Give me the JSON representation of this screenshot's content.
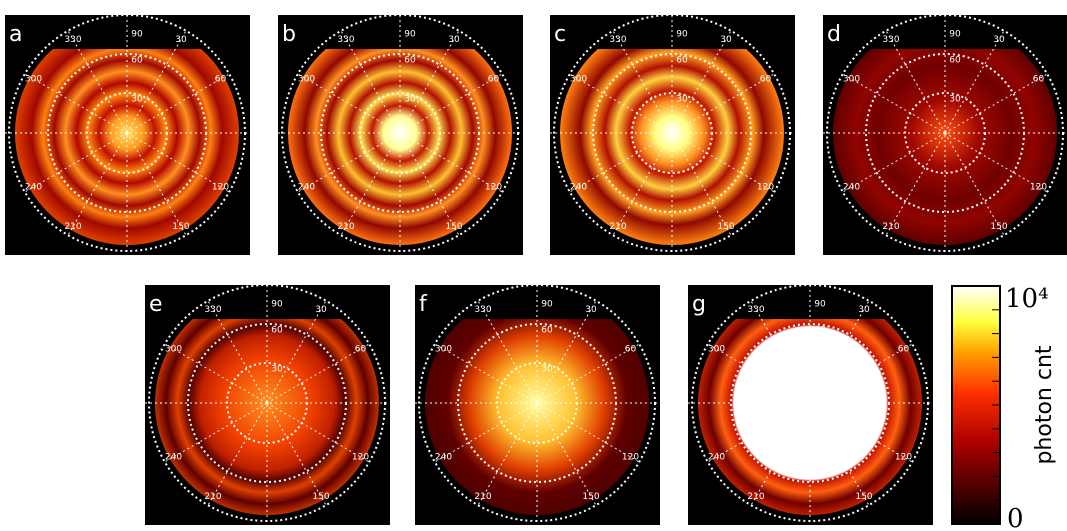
{
  "panels": [
    {
      "label": "a"
    },
    {
      "label": "b"
    },
    {
      "label": "c"
    },
    {
      "label": "d"
    },
    {
      "label": "e"
    },
    {
      "label": "f"
    },
    {
      "label": "g"
    }
  ],
  "azimuth_labels": [
    "30",
    "60",
    "120",
    "150",
    "210",
    "240",
    "300",
    "330"
  ],
  "radial_labels": [
    "30",
    "60",
    "90"
  ],
  "colorbar": {
    "label": "photon cnt",
    "max_label": "10⁴",
    "min_label": "0"
  }
}
